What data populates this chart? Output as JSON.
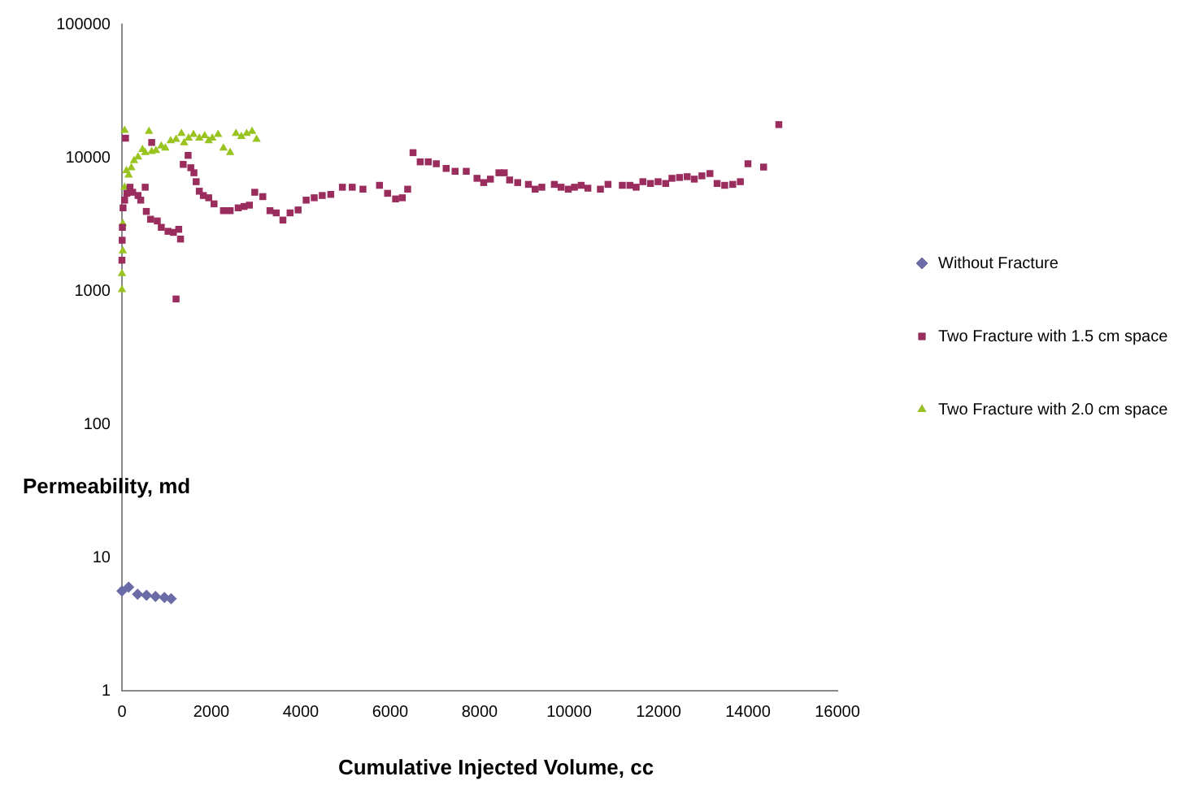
{
  "chart_data": {
    "type": "scatter",
    "xlabel": "Cumulative Injected Volume, cc",
    "ylabel": "Permeability, md",
    "log": "y",
    "grid": false,
    "legend": "right",
    "xlim": [
      0,
      16000
    ],
    "xticks": [
      0,
      2000,
      4000,
      6000,
      8000,
      10000,
      12000,
      14000,
      16000
    ],
    "ylim": [
      1,
      100000
    ],
    "yticks": [
      1,
      10,
      100,
      1000,
      10000,
      100000
    ],
    "series": [
      {
        "name": "Without Fracture",
        "color": "#6b6ba8",
        "marker": "diamond",
        "x": [
          0,
          150,
          350,
          550,
          750,
          950,
          1100
        ],
        "values": [
          5.6,
          6.0,
          5.3,
          5.2,
          5.1,
          5.0,
          4.9
        ]
      },
      {
        "name": "Two Fracture with 1.5 cm space",
        "color": "#9b2c5e",
        "marker": "square",
        "x": [
          0,
          5,
          10,
          25,
          60,
          80,
          110,
          180,
          240,
          360,
          420,
          520,
          545,
          640,
          665,
          790,
          880,
          1030,
          1150,
          1210,
          1270,
          1310,
          1370,
          1480,
          1540,
          1610,
          1660,
          1730,
          1820,
          1940,
          2060,
          2270,
          2420,
          2600,
          2730,
          2850,
          2970,
          3150,
          3310,
          3450,
          3600,
          3760,
          3940,
          4120,
          4300,
          4480,
          4670,
          4930,
          5150,
          5390,
          5760,
          5940,
          6120,
          6270,
          6390,
          6510,
          6670,
          6850,
          7030,
          7250,
          7450,
          7700,
          7940,
          8090,
          8240,
          8430,
          8550,
          8670,
          8850,
          9090,
          9240,
          9390,
          9670,
          9820,
          9980,
          10120,
          10270,
          10420,
          10700,
          10870,
          11190,
          11360,
          11500,
          11650,
          11820,
          11990,
          12160,
          12300,
          12470,
          12640,
          12800,
          12970,
          13150,
          13310,
          13480,
          13660,
          13830,
          14000,
          14350,
          14690
        ],
        "values": [
          1700,
          2400,
          3000,
          4200,
          4800,
          14000,
          5400,
          6000,
          5500,
          5200,
          4800,
          6000,
          3950,
          3450,
          13000,
          3350,
          3000,
          2800,
          2750,
          870,
          2900,
          2450,
          8900,
          10400,
          8400,
          7700,
          6600,
          5600,
          5200,
          5000,
          4500,
          4000,
          4000,
          4200,
          4300,
          4400,
          5500,
          5100,
          4000,
          3850,
          3400,
          3850,
          4050,
          4800,
          5000,
          5200,
          5300,
          6000,
          6000,
          5800,
          6200,
          5400,
          4900,
          5000,
          5800,
          10900,
          9300,
          9300,
          9000,
          8300,
          7900,
          7900,
          7000,
          6500,
          6900,
          7700,
          7700,
          6800,
          6500,
          6300,
          5800,
          6000,
          6300,
          6000,
          5800,
          6000,
          6200,
          5900,
          5800,
          6300,
          6200,
          6200,
          6000,
          6600,
          6400,
          6600,
          6400,
          7000,
          7100,
          7200,
          6900,
          7300,
          7600,
          6400,
          6200,
          6300,
          6600,
          9000,
          8500,
          17700
        ]
      },
      {
        "name": "Two Fracture with 2.0 cm space",
        "color": "#99c31e",
        "marker": "triangle",
        "x": [
          0,
          0,
          20,
          20,
          60,
          60,
          100,
          150,
          210,
          270,
          360,
          460,
          520,
          605,
          665,
          760,
          880,
          970,
          1090,
          1210,
          1330,
          1390,
          1490,
          1600,
          1730,
          1850,
          1940,
          2020,
          2150,
          2270,
          2420,
          2550,
          2670,
          2790,
          2910,
          3010
        ],
        "values": [
          1020,
          1350,
          2000,
          3200,
          6000,
          16000,
          8000,
          7400,
          8400,
          9500,
          10100,
          11500,
          10900,
          15700,
          11100,
          11300,
          12200,
          11800,
          13400,
          13700,
          15200,
          12900,
          14000,
          14900,
          14000,
          14600,
          13400,
          14000,
          14900,
          11800,
          10900,
          15200,
          14400,
          15200,
          15700,
          13700
        ]
      }
    ]
  }
}
